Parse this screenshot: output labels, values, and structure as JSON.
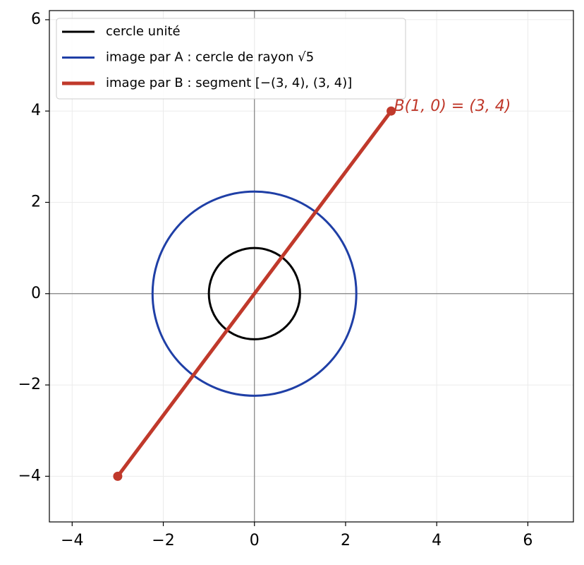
{
  "chart_data": {
    "type": "geometry",
    "xlim": [
      -4.5,
      7
    ],
    "ylim": [
      -5,
      6.2
    ],
    "xticks": [
      {
        "value": -4,
        "label": "−4"
      },
      {
        "value": -2,
        "label": "−2"
      },
      0,
      2,
      4,
      6
    ],
    "yticks": [
      {
        "value": -4,
        "label": "−4"
      },
      {
        "value": -2,
        "label": "−2"
      },
      0,
      2,
      4,
      6
    ],
    "grid": true,
    "legend": "upper left",
    "series": [
      {
        "name": "cercle unité",
        "color": "#000000",
        "kind": "circle",
        "center": [
          0,
          0
        ],
        "radius": 1
      },
      {
        "name": "image par A : cercle de rayon √5",
        "color": "#1f3fa6",
        "kind": "circle",
        "center": [
          0,
          0
        ],
        "radius": 2.236
      },
      {
        "name": "image par B : segment [−(3, 4), (3, 4)]",
        "color": "#c0392b",
        "kind": "segment",
        "x": [
          -3,
          3
        ],
        "y": [
          -4,
          4
        ]
      }
    ],
    "annotation": {
      "text": "B(1, 0) = (3, 4)",
      "x": 3,
      "y": 4
    }
  }
}
